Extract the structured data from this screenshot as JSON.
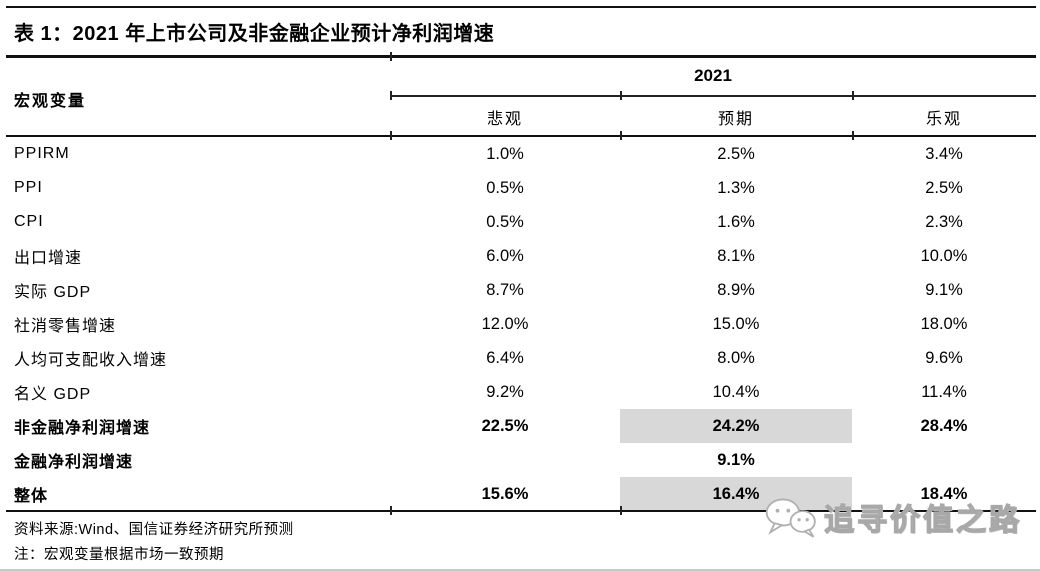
{
  "title": "表 1：2021 年上市公司及非金融企业预计净利润增速",
  "table": {
    "corner_header": "宏观变量",
    "year_header": "2021",
    "scenario_headers": [
      "悲观",
      "预期",
      "乐观"
    ],
    "rows": [
      {
        "label": "PPIRM",
        "values": [
          "1.0%",
          "2.5%",
          "3.4%"
        ],
        "bold": false,
        "highlight": []
      },
      {
        "label": "PPI",
        "values": [
          "0.5%",
          "1.3%",
          "2.5%"
        ],
        "bold": false,
        "highlight": []
      },
      {
        "label": "CPI",
        "values": [
          "0.5%",
          "1.6%",
          "2.3%"
        ],
        "bold": false,
        "highlight": []
      },
      {
        "label": "出口增速",
        "values": [
          "6.0%",
          "8.1%",
          "10.0%"
        ],
        "bold": false,
        "highlight": []
      },
      {
        "label": "实际 GDP",
        "values": [
          "8.7%",
          "8.9%",
          "9.1%"
        ],
        "bold": false,
        "highlight": []
      },
      {
        "label": "社消零售增速",
        "values": [
          "12.0%",
          "15.0%",
          "18.0%"
        ],
        "bold": false,
        "highlight": []
      },
      {
        "label": "人均可支配收入增速",
        "values": [
          "6.4%",
          "8.0%",
          "9.6%"
        ],
        "bold": false,
        "highlight": []
      },
      {
        "label": "名义 GDP",
        "values": [
          "9.2%",
          "10.4%",
          "11.4%"
        ],
        "bold": false,
        "highlight": []
      },
      {
        "label": "非金融净利润增速",
        "values": [
          "22.5%",
          "24.2%",
          "28.4%"
        ],
        "bold": true,
        "highlight": [
          1
        ]
      },
      {
        "label": "金融净利润增速",
        "values": [
          "",
          "9.1%",
          ""
        ],
        "bold": true,
        "highlight": []
      },
      {
        "label": "整体",
        "values": [
          "15.6%",
          "16.4%",
          "18.4%"
        ],
        "bold": true,
        "highlight": [
          1
        ]
      }
    ]
  },
  "footer": {
    "source": "资料来源:Wind、国信证券经济研究所预测",
    "note": "注：宏观变量根据市场一致预期"
  },
  "watermark": {
    "text": "追寻价值之路",
    "icon": "wechat-icon"
  },
  "colors": {
    "highlight": "#d8d8d8",
    "text": "#000000",
    "rule": "#111111",
    "watermark_gray": "#a8a8a8",
    "page_bottom_line": "#c9c9c9"
  }
}
